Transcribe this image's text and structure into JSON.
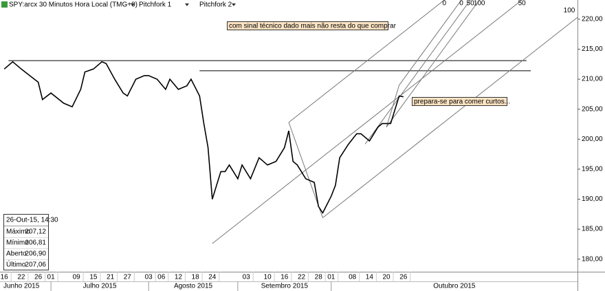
{
  "chart_data": {
    "type": "line",
    "toolbar": {
      "symbol": "SPY:arcx 30 Minutos Hora Local (TMG+0)",
      "tools": [
        "Pitchfork 1",
        "Pitchfork 2"
      ]
    },
    "annotations": [
      "com sinal técnico dado mais não resta do que comprar",
      "prepara-se para comer curtos..."
    ],
    "info": {
      "title": "26-Out-15, 14:30",
      "rows": [
        [
          "Máximo",
          "207,12"
        ],
        [
          "Mínimo",
          "206,81"
        ],
        [
          "Aberto",
          "206,90"
        ],
        [
          "Último",
          "207,06"
        ]
      ]
    },
    "xlim": [
      "2015-06-15",
      "2015-12-22"
    ],
    "ylim": [
      177.9,
      223.2
    ],
    "yticks": [
      {
        "value": 180,
        "label": "180,00"
      },
      {
        "value": 185,
        "label": "185,00"
      },
      {
        "value": 190,
        "label": "190,00"
      },
      {
        "value": 195,
        "label": "195,00"
      },
      {
        "value": 200,
        "label": "200,00"
      },
      {
        "value": 205,
        "label": "205,00"
      },
      {
        "value": 210,
        "label": "210,00"
      },
      {
        "value": 215,
        "label": "215,00"
      },
      {
        "value": 220,
        "label": "220,00"
      }
    ],
    "xticks": [
      {
        "value": "2015-06-16",
        "label": "16"
      },
      {
        "value": "2015-06-22",
        "label": "22"
      },
      {
        "value": "2015-06-26",
        "label": "26"
      },
      {
        "value": "2015-07-01",
        "label": "01"
      },
      {
        "value": "2015-07-09",
        "label": "09"
      },
      {
        "value": "2015-07-15",
        "label": "15"
      },
      {
        "value": "2015-07-21",
        "label": "21"
      },
      {
        "value": "2015-07-27",
        "label": "27"
      },
      {
        "value": "2015-08-03",
        "label": "03"
      },
      {
        "value": "2015-08-06",
        "label": "06"
      },
      {
        "value": "2015-08-12",
        "label": "12"
      },
      {
        "value": "2015-08-18",
        "label": "18"
      },
      {
        "value": "2015-08-24",
        "label": "24"
      },
      {
        "value": "2015-09-03",
        "label": "03"
      },
      {
        "value": "2015-09-10",
        "label": "10"
      },
      {
        "value": "2015-09-16",
        "label": "16"
      },
      {
        "value": "2015-09-22",
        "label": "22"
      },
      {
        "value": "2015-09-28",
        "label": "28"
      },
      {
        "value": "2015-10-01",
        "label": "01"
      },
      {
        "value": "2015-10-08",
        "label": "08"
      },
      {
        "value": "2015-10-14",
        "label": "14"
      },
      {
        "value": "2015-10-20",
        "label": "20"
      },
      {
        "value": "2015-10-26",
        "label": "26"
      }
    ],
    "months": [
      {
        "value": "2015-06-01",
        "label": "Junho 2015"
      },
      {
        "value": "2015-07-01",
        "label": "Julho 2015"
      },
      {
        "value": "2015-08-01",
        "label": "Agosto 2015"
      },
      {
        "value": "2015-09-01",
        "label": "Setembro 2015"
      },
      {
        "value": "2015-10-01",
        "label": "Outubro 2015"
      }
    ],
    "series": [
      {
        "name": "SPY",
        "color": "#000000",
        "x": [
          "2015-06-16",
          "2015-06-18",
          "2015-06-22",
          "2015-06-24",
          "2015-06-26",
          "2015-06-29",
          "2015-07-01",
          "2015-07-06",
          "2015-07-08",
          "2015-07-10",
          "2015-07-13",
          "2015-07-15",
          "2015-07-17",
          "2015-07-20",
          "2015-07-22",
          "2015-07-24",
          "2015-07-27",
          "2015-07-29",
          "2015-07-31",
          "2015-08-03",
          "2015-08-05",
          "2015-08-07",
          "2015-08-10",
          "2015-08-12",
          "2015-08-14",
          "2015-08-17",
          "2015-08-19",
          "2015-08-20",
          "2015-08-21",
          "2015-08-24",
          "2015-08-25",
          "2015-08-26",
          "2015-08-27",
          "2015-08-28",
          "2015-09-01",
          "2015-09-02",
          "2015-09-04",
          "2015-09-08",
          "2015-09-10",
          "2015-09-14",
          "2015-09-16",
          "2015-09-17",
          "2015-09-18",
          "2015-09-21",
          "2015-09-23",
          "2015-09-25",
          "2015-09-28",
          "2015-09-29",
          "2015-10-01",
          "2015-10-02",
          "2015-10-05",
          "2015-10-07",
          "2015-10-09",
          "2015-10-12",
          "2015-10-14",
          "2015-10-16",
          "2015-10-19",
          "2015-10-21",
          "2015-10-22",
          "2015-10-23",
          "2015-10-26"
        ],
        "values": [
          211.7,
          212.9,
          211.7,
          210.6,
          209.5,
          206.6,
          207.7,
          206.0,
          205.4,
          208.3,
          211.2,
          211.7,
          212.9,
          212.6,
          210.0,
          207.7,
          207.2,
          210.0,
          210.6,
          210.6,
          210.0,
          208.3,
          210.0,
          208.3,
          208.9,
          210.0,
          207.2,
          202.6,
          198.6,
          190.0,
          192.3,
          194.6,
          194.6,
          195.7,
          193.4,
          195.7,
          193.4,
          196.9,
          195.7,
          196.3,
          198.6,
          201.4,
          196.3,
          195.7,
          193.4,
          192.8,
          188.8,
          187.7,
          190.5,
          192.3,
          196.9,
          199.1,
          200.9,
          200.9,
          199.7,
          202.0,
          202.6,
          202.6,
          204.9,
          207.2,
          207.06
        ]
      }
    ],
    "hlines": [
      {
        "y": 213.1,
        "x": [
          "2015-06-17",
          "2015-12-04"
        ]
      },
      {
        "y": 211.4,
        "x": [
          "2015-08-19",
          "2015-12-07"
        ]
      }
    ],
    "pitchforks": [
      {
        "name": "Pitchfork 1",
        "points": [
          {
            "x": "2015-08-24",
            "y": 182.6
          },
          {
            "x": "2015-09-17",
            "y": 202.8
          },
          {
            "x": "2015-09-29",
            "y": 186.9
          }
        ],
        "labels": [
          "0",
          "50",
          "100"
        ]
      },
      {
        "name": "Pitchfork 2",
        "points": [
          {
            "x": "2015-10-13",
            "y": 199.2
          },
          {
            "x": "2015-10-23",
            "y": 209.0
          },
          {
            "x": "2015-10-20",
            "y": 202.0
          }
        ],
        "labels": [
          "0",
          "50",
          "100"
        ]
      }
    ]
  }
}
